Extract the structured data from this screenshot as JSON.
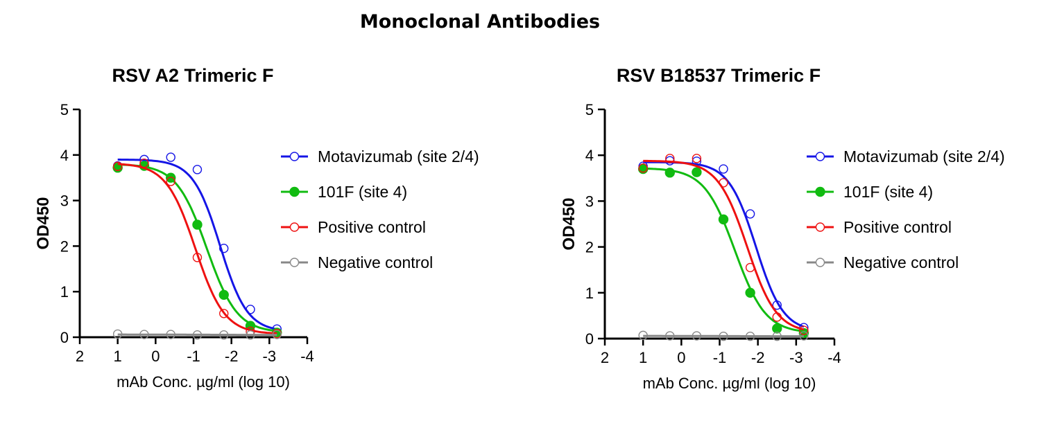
{
  "figure": {
    "title": "Monoclonal Antibodies"
  },
  "chart_data": [
    {
      "type": "line",
      "title": "RSV A2 Trimeric F",
      "xlabel": "mAb Conc. µg/ml (log 10)",
      "ylabel": "OD450",
      "xlim": [
        2,
        -4
      ],
      "ylim": [
        0,
        5
      ],
      "x_reversed": true,
      "xticks": [
        "2",
        "1",
        "0",
        "-1",
        "-2",
        "-3",
        "-4"
      ],
      "yticks": [
        "0",
        "1",
        "2",
        "3",
        "4",
        "5"
      ],
      "legend_position": "right",
      "x": [
        1.0,
        0.3,
        -0.4,
        -1.1,
        -1.8,
        -2.5,
        -3.2
      ],
      "series": [
        {
          "name": "Motavizumab (site 2/4)",
          "color": "#1515e6",
          "marker": "open-circle",
          "values": [
            3.76,
            3.9,
            3.95,
            3.68,
            1.95,
            0.61,
            0.18
          ],
          "fit": {
            "bottom": 0.12,
            "top": 3.9,
            "midpoint": -1.7,
            "slope": 2.8
          }
        },
        {
          "name": "101F (site 4)",
          "color": "#11bb11",
          "marker": "filled-circle",
          "values": [
            3.72,
            3.76,
            3.5,
            2.47,
            0.93,
            0.25,
            0.1
          ],
          "fit": {
            "bottom": 0.1,
            "top": 3.8,
            "midpoint": -1.35,
            "slope": 2.5
          }
        },
        {
          "name": "Positive control",
          "color": "#ee1111",
          "marker": "open-circle",
          "values": [
            3.75,
            3.82,
            3.42,
            1.75,
            0.52,
            0.13,
            0.08
          ],
          "fit": {
            "bottom": 0.07,
            "top": 3.82,
            "midpoint": -1.05,
            "slope": 2.6
          }
        },
        {
          "name": "Negative control",
          "color": "#888888",
          "marker": "open-circle",
          "values": [
            0.07,
            0.06,
            0.06,
            0.05,
            0.05,
            0.05,
            0.06
          ],
          "fit": {
            "bottom": 0.05,
            "top": 0.06,
            "midpoint": -1.0,
            "slope": 1.0
          }
        }
      ]
    },
    {
      "type": "line",
      "title": "RSV B18537 Trimeric F",
      "xlabel": "mAb Conc. µg/ml (log 10)",
      "ylabel": "OD450",
      "xlim": [
        2,
        -4
      ],
      "ylim": [
        0,
        5
      ],
      "x_reversed": true,
      "xticks": [
        "2",
        "1",
        "0",
        "-1",
        "-2",
        "-3",
        "-4"
      ],
      "yticks": [
        "0",
        "1",
        "2",
        "3",
        "4",
        "5"
      ],
      "legend_position": "right",
      "x": [
        1.0,
        0.3,
        -0.4,
        -1.1,
        -1.8,
        -2.5,
        -3.2
      ],
      "series": [
        {
          "name": "Motavizumab (site 2/4)",
          "color": "#1515e6",
          "marker": "open-circle",
          "values": [
            3.76,
            3.88,
            3.87,
            3.7,
            2.72,
            0.73,
            0.24
          ],
          "fit": {
            "bottom": 0.15,
            "top": 3.85,
            "midpoint": -1.95,
            "slope": 2.8
          }
        },
        {
          "name": "101F (site 4)",
          "color": "#11bb11",
          "marker": "filled-circle",
          "values": [
            3.7,
            3.62,
            3.63,
            2.6,
            1.0,
            0.22,
            0.12
          ],
          "fit": {
            "bottom": 0.12,
            "top": 3.72,
            "midpoint": -1.4,
            "slope": 2.5
          }
        },
        {
          "name": "Positive control",
          "color": "#ee1111",
          "marker": "open-circle",
          "values": [
            3.72,
            3.93,
            3.93,
            3.4,
            1.55,
            0.47,
            0.18
          ],
          "fit": {
            "bottom": 0.12,
            "top": 3.88,
            "midpoint": -1.72,
            "slope": 2.6
          }
        },
        {
          "name": "Negative control",
          "color": "#888888",
          "marker": "open-circle",
          "values": [
            0.07,
            0.06,
            0.06,
            0.05,
            0.05,
            0.05,
            0.06
          ],
          "fit": {
            "bottom": 0.05,
            "top": 0.06,
            "midpoint": -1.0,
            "slope": 1.0
          }
        }
      ]
    }
  ]
}
